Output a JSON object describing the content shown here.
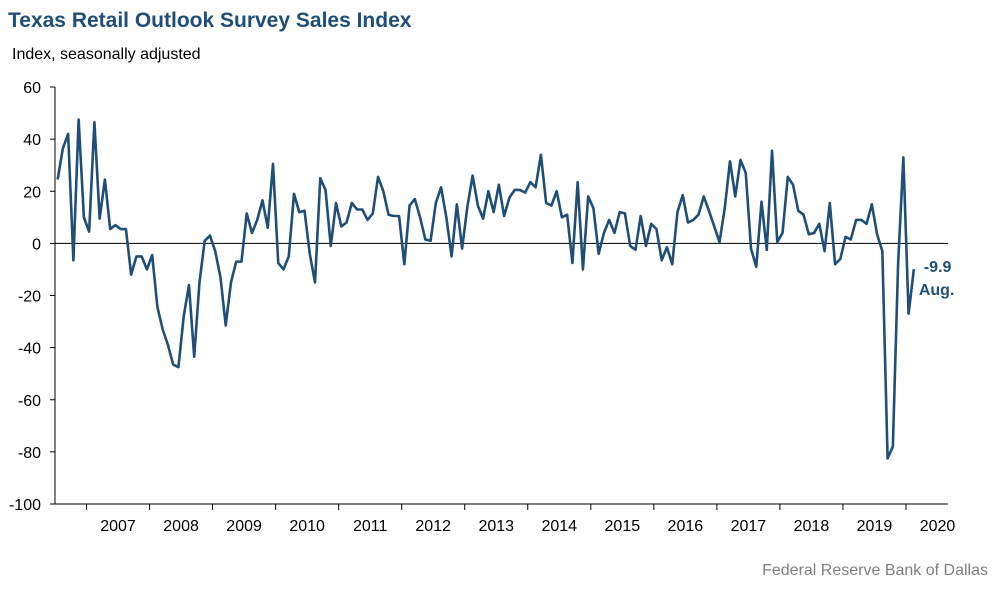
{
  "chart_data": {
    "type": "line",
    "title": "Texas Retail Outlook Survey Sales Index",
    "ylabel": "Index, seasonally adjusted",
    "ylim": [
      -100,
      60
    ],
    "yticks": [
      60,
      40,
      20,
      0,
      -20,
      -40,
      -60,
      -80,
      -100
    ],
    "xticks": [
      "2007",
      "2008",
      "2009",
      "2010",
      "2011",
      "2012",
      "2013",
      "2014",
      "2015",
      "2016",
      "2017",
      "2018",
      "2019",
      "2020"
    ],
    "x_start": "2006-07",
    "x_end": "2020-08",
    "grid": false,
    "color": "#1f4e79",
    "annotation": {
      "value": "-9.9",
      "label": "Aug."
    },
    "series": [
      {
        "values": [
          24.5,
          36.5,
          42.0,
          -6.5,
          47.5,
          10.0,
          4.5,
          46.5,
          9.5,
          24.5,
          5.5,
          7.0,
          5.5,
          5.5,
          -12.0,
          -5.0,
          -5.0,
          -10.0,
          -4.5,
          -24.5,
          -33.0,
          -39.0,
          -46.5,
          -47.5,
          -28.0,
          -16.0,
          -43.5,
          -15.0,
          1.0,
          3.0,
          -3.0,
          -13.0,
          -31.5,
          -15.0,
          -7.0,
          -7.0,
          11.5,
          4.0,
          9.0,
          16.5,
          6.0,
          30.5,
          -7.5,
          -10.0,
          -5.0,
          19.0,
          12.0,
          12.5,
          -4.0,
          -15.0,
          25.0,
          20.5,
          -1.0,
          15.5,
          6.5,
          8.0,
          15.5,
          13.0,
          13.0,
          9.0,
          11.5,
          25.5,
          20.0,
          11.0,
          10.5,
          10.5,
          -8.0,
          14.5,
          17.0,
          10.0,
          1.5,
          1.0,
          15.5,
          21.5,
          10.0,
          -5.0,
          15.0,
          -2.0,
          14.0,
          26.0,
          14.5,
          9.5,
          20.0,
          12.0,
          22.5,
          10.5,
          17.5,
          20.5,
          20.5,
          19.5,
          23.5,
          21.5,
          34.0,
          15.5,
          14.5,
          20.0,
          10.0,
          11.0,
          -7.5,
          23.5,
          -10.0,
          18.0,
          13.5,
          -4.0,
          4.0,
          9.0,
          4.0,
          12.0,
          11.5,
          -1.0,
          -2.5,
          10.5,
          -1.0,
          7.5,
          5.5,
          -6.5,
          -1.5,
          -8.0,
          12.0,
          18.5,
          8.0,
          9.0,
          11.0,
          18.0,
          12.5,
          6.5,
          0.5,
          13.5,
          31.5,
          18.0,
          32.0,
          27.0,
          -2.0,
          -9.0,
          16.0,
          -2.5,
          35.5,
          0.5,
          4.0,
          25.5,
          22.5,
          12.5,
          11.0,
          3.5,
          4.0,
          7.5,
          -3.0,
          15.5,
          -8.0,
          -6.0,
          2.5,
          1.5,
          9.0,
          9.0,
          7.5,
          15.0,
          3.5,
          -3.0,
          -82.5,
          -78.0,
          -8.0,
          33.0,
          -27.0,
          -9.9
        ]
      }
    ]
  },
  "source": "Federal Reserve Bank of Dallas"
}
